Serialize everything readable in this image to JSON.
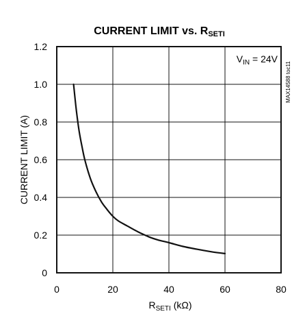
{
  "chart_data": {
    "type": "line",
    "title": "CURRENT LIMIT vs. R",
    "title_sub": "SETI",
    "xlabel": "R",
    "xlabel_sub": "SETI",
    "xlabel_unit": " (kΩ)",
    "ylabel": "CURRENT LIMIT (A)",
    "xlim": [
      0,
      80
    ],
    "ylim": [
      0,
      1.2
    ],
    "x_ticks": [
      0,
      20,
      40,
      60,
      80
    ],
    "y_ticks": [
      0,
      0.2,
      0.4,
      0.6,
      0.8,
      1.0,
      1.2
    ],
    "x_tick_labels": [
      "0",
      "20",
      "40",
      "60",
      "80"
    ],
    "y_tick_labels": [
      "0",
      "0.2",
      "0.4",
      "0.6",
      "0.8",
      "1.0",
      "1.2"
    ],
    "grid": true,
    "annotation": {
      "prefix": "V",
      "sub": "IN",
      "suffix": " = 24V",
      "placement": "top-right"
    },
    "side_id": "MAX14588 toc11",
    "series": [
      {
        "x": [
          6,
          7,
          8,
          9,
          10,
          12,
          14,
          16,
          18,
          20,
          22,
          25,
          28,
          30,
          33,
          36,
          40,
          45,
          50,
          55,
          60
        ],
        "y": [
          1.0,
          0.86,
          0.75,
          0.67,
          0.6,
          0.5,
          0.43,
          0.375,
          0.335,
          0.3,
          0.275,
          0.25,
          0.225,
          0.21,
          0.19,
          0.175,
          0.16,
          0.14,
          0.125,
          0.112,
          0.102
        ]
      }
    ]
  }
}
